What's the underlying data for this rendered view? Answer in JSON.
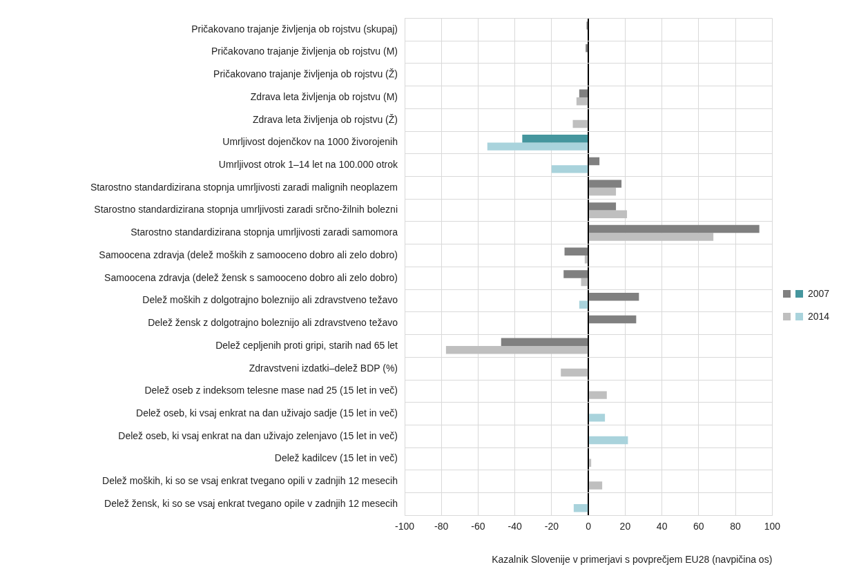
{
  "chart_data": {
    "type": "bar",
    "orientation": "horizontal",
    "xlabel": "Kazalnik Slovenije v primerjavi s povprečjem EU28 (navpičina os)",
    "categories": [
      "Pričakovano trajanje življenja ob rojstvu (skupaj)",
      "Pričakovano trajanje življenja ob rojstvu (M)",
      "Pričakovano trajanje življenja ob rojstvu (Ž)",
      "Zdrava leta življenja ob rojstvu (M)",
      "Zdrava leta življenja ob rojstvu (Ž)",
      "Umrljivost dojenčkov na 1000 živorojenih",
      "Umrljivost otrok 1–14 let na 100.000 otrok",
      "Starostno standardizirana stopnja umrljivosti zaradi malignih neoplazem",
      "Starostno standardizirana stopnja umrljivosti zaradi srčno-žilnih bolezni",
      "Starostno standardizirana stopnja umrljivosti zaradi samomora",
      "Samoocena zdravja (delež moških z samooceno dobro ali zelo dobro)",
      "Samoocena zdravja (delež žensk s samooceno dobro ali zelo dobro)",
      "Delež moških z dolgotrajno boleznijo ali zdravstveno težavo",
      "Delež žensk z dolgotrajno boleznijo ali zdravstveno težavo",
      "Delež cepljenih proti gripi, starih nad 65 let",
      "Zdravstveni izdatki–delež BDP (%)",
      "Delež oseb z indeksom telesne mase nad 25 (15 let in več)",
      "Delež oseb, ki vsaj enkrat na dan uživajo sadje (15 let in več)",
      "Delež oseb, ki vsaj enkrat na dan uživajo zelenjavo (15 let in več)",
      "Delež kadilcev (15 let in več)",
      "Delež moških, ki so se vsaj enkrat tvegano opili v zadnjih 12 mesecih",
      "Delež žensk, ki so se vsaj enkrat tvegano opile v zadnjih 12 mesecih"
    ],
    "series": [
      {
        "name": "2007",
        "color": "#808080",
        "values": [
          -1,
          -1.5,
          null,
          -5,
          null,
          -36,
          6,
          18,
          15,
          93,
          -13,
          -13.5,
          27.5,
          26,
          -47.5,
          null,
          null,
          null,
          null,
          null,
          null,
          null
        ],
        "colors": [
          "#808080",
          "#808080",
          "#45969e",
          "#808080",
          "#45969e",
          "#45969e",
          "#808080",
          "#808080",
          "#808080",
          "#808080",
          "#808080",
          "#808080",
          "#808080",
          "#808080",
          "#808080",
          "#808080",
          "#808080",
          "#808080",
          "#808080",
          "#808080",
          "#808080",
          "#808080"
        ]
      },
      {
        "name": "2014",
        "color": "#bfbfbf",
        "values": [
          null,
          null,
          null,
          -6.5,
          -8.5,
          -55,
          -20,
          15,
          21,
          68,
          -2,
          -4,
          -5,
          null,
          -77.5,
          -15,
          10,
          9,
          21.5,
          1.5,
          7.5,
          -8
        ],
        "colors": [
          "#bfbfbf",
          "#bfbfbf",
          "#bfbfbf",
          "#bfbfbf",
          "#bfbfbf",
          "#a9d3dc",
          "#a9d3dc",
          "#bfbfbf",
          "#bfbfbf",
          "#bfbfbf",
          "#bfbfbf",
          "#bfbfbf",
          "#a9d3dc",
          "#a9d3dc",
          "#bfbfbf",
          "#bfbfbf",
          "#bfbfbf",
          "#a9d3dc",
          "#a9d3dc",
          "#bfbfbf",
          "#bfbfbf",
          "#a9d3dc"
        ]
      }
    ],
    "xlim": [
      -100,
      100
    ],
    "xticks": [
      -100,
      -80,
      -60,
      -40,
      -20,
      0,
      20,
      40,
      60,
      80,
      100
    ],
    "grid": true,
    "legend": "right"
  }
}
